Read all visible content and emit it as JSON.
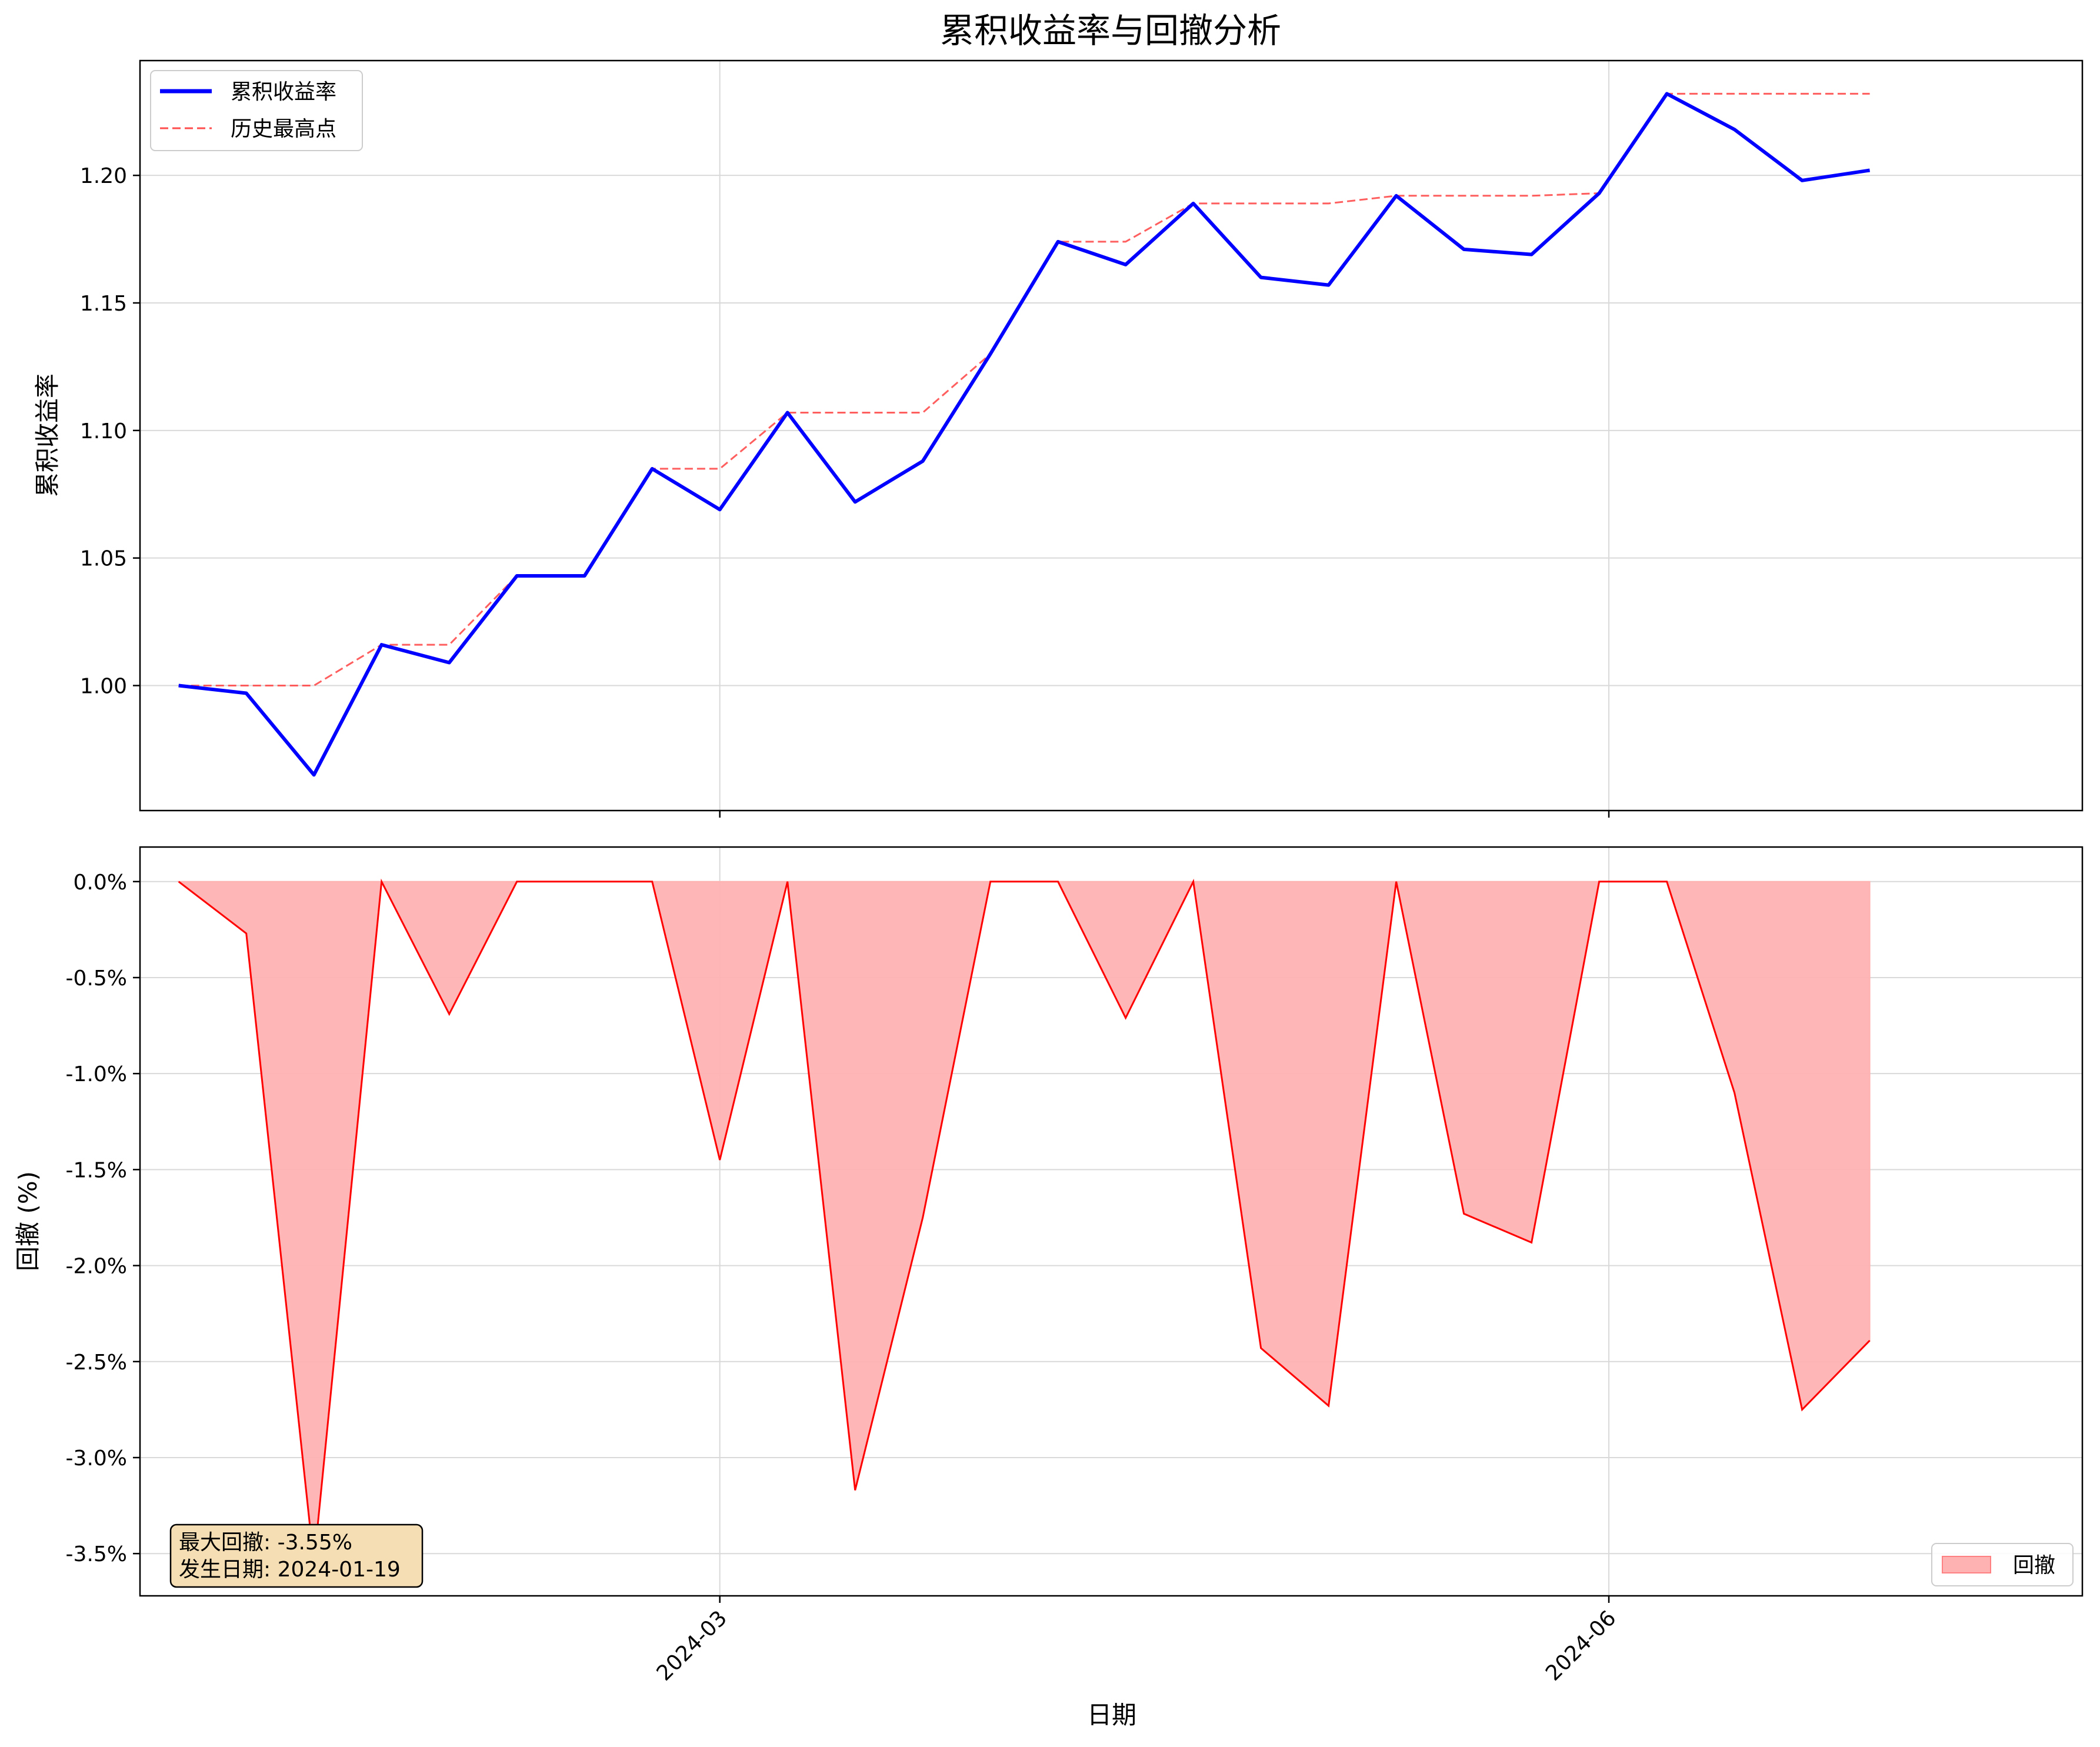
{
  "chart_data": [
    {
      "type": "line",
      "title": "累积收益率与回撤分析",
      "ylabel": "累积收益率",
      "xlim": [
        "2024-01-01",
        "2024-07-20"
      ],
      "ylim": [
        0.951,
        1.245
      ],
      "yticks": [
        1.0,
        1.05,
        1.1,
        1.15,
        1.2
      ],
      "ytick_labels": [
        "1.00",
        "1.05",
        "1.10",
        "1.15",
        "1.20"
      ],
      "grid": true,
      "legend_position": "upper-left",
      "x": [
        "2024-01-05",
        "2024-01-12",
        "2024-01-19",
        "2024-01-26",
        "2024-02-02",
        "2024-02-09",
        "2024-02-16",
        "2024-02-23",
        "2024-03-01",
        "2024-03-08",
        "2024-03-15",
        "2024-03-22",
        "2024-03-29",
        "2024-04-05",
        "2024-04-12",
        "2024-04-19",
        "2024-04-26",
        "2024-05-03",
        "2024-05-10",
        "2024-05-17",
        "2024-05-24",
        "2024-05-31",
        "2024-06-07",
        "2024-06-14",
        "2024-06-21",
        "2024-06-28"
      ],
      "series": [
        {
          "name": "累积收益率",
          "color": "#0000ff",
          "style": "solid",
          "values": [
            1.0,
            0.997,
            0.965,
            1.016,
            1.009,
            1.043,
            1.043,
            1.085,
            1.069,
            1.107,
            1.072,
            1.088,
            1.13,
            1.174,
            1.165,
            1.189,
            1.16,
            1.157,
            1.192,
            1.171,
            1.169,
            1.193,
            1.232,
            1.218,
            1.198,
            1.202
          ]
        },
        {
          "name": "历史最高点",
          "color": "#ff4d4d",
          "style": "dashed",
          "values": [
            1.0,
            1.0,
            1.0,
            1.016,
            1.016,
            1.043,
            1.043,
            1.085,
            1.085,
            1.107,
            1.107,
            1.107,
            1.13,
            1.174,
            1.174,
            1.189,
            1.189,
            1.189,
            1.192,
            1.192,
            1.192,
            1.193,
            1.232,
            1.232,
            1.232,
            1.232
          ]
        }
      ]
    },
    {
      "type": "area",
      "ylabel": "回撤 (%)",
      "xlabel": "日期",
      "xlim": [
        "2024-01-01",
        "2024-07-20"
      ],
      "ylim": [
        -3.72,
        0.18
      ],
      "yticks": [
        0.0,
        -0.5,
        -1.0,
        -1.5,
        -2.0,
        -2.5,
        -3.0,
        -3.5
      ],
      "ytick_labels": [
        "0.0%",
        "-0.5%",
        "-1.0%",
        "-1.5%",
        "-2.0%",
        "-2.5%",
        "-3.0%",
        "-3.5%"
      ],
      "xticks": [
        "2024-03-01",
        "2024-06-01"
      ],
      "xtick_labels": [
        "2024-03",
        "2024-06"
      ],
      "grid": true,
      "legend_position": "lower-right",
      "x": [
        "2024-01-05",
        "2024-01-12",
        "2024-01-19",
        "2024-01-26",
        "2024-02-02",
        "2024-02-09",
        "2024-02-16",
        "2024-02-23",
        "2024-03-01",
        "2024-03-08",
        "2024-03-15",
        "2024-03-22",
        "2024-03-29",
        "2024-04-05",
        "2024-04-12",
        "2024-04-19",
        "2024-04-26",
        "2024-05-03",
        "2024-05-10",
        "2024-05-17",
        "2024-05-24",
        "2024-05-31",
        "2024-06-07",
        "2024-06-14",
        "2024-06-21",
        "2024-06-28"
      ],
      "series": [
        {
          "name": "回撤",
          "fill_color": "#ffb2b2",
          "line_color": "#ff0000",
          "values": [
            0.0,
            -0.27,
            -3.55,
            0.0,
            -0.69,
            0.0,
            0.0,
            0.0,
            -1.45,
            0.0,
            -3.17,
            -1.75,
            0.0,
            0.0,
            -0.71,
            0.0,
            -2.43,
            -2.73,
            0.0,
            -1.73,
            -1.88,
            0.0,
            0.0,
            -1.1,
            -2.75,
            -2.39
          ]
        }
      ],
      "annotation": {
        "line1": "最大回撤: -3.55%",
        "line2": "发生日期: 2024-01-19",
        "bg_color": "#f5deb3"
      }
    }
  ]
}
